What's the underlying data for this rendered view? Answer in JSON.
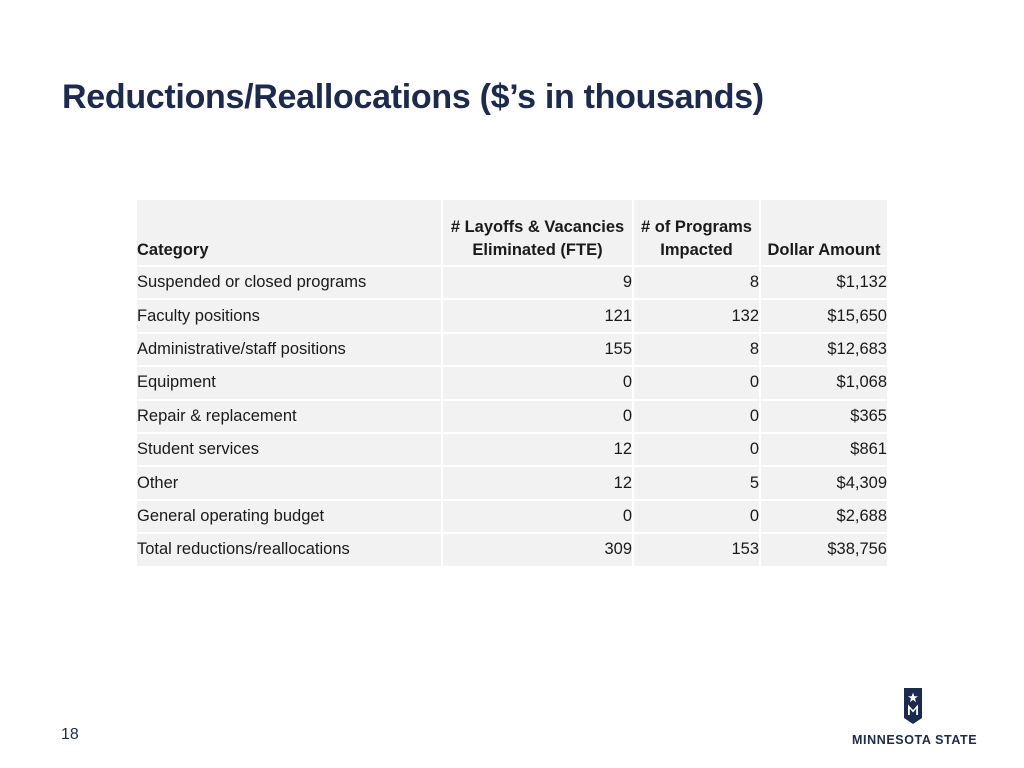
{
  "slide": {
    "title": "Reductions/Reallocations ($’s in thousands)",
    "page_number": "18"
  },
  "table": {
    "headers": {
      "category": "Category",
      "layoffs_line1": "# Layoffs & Vacancies",
      "layoffs_line2": "Eliminated (FTE)",
      "programs_line1": "# of Programs",
      "programs_line2": "Impacted",
      "dollar": "Dollar Amount"
    },
    "rows": [
      {
        "category": "Suspended or closed programs",
        "layoffs": "9",
        "programs": "8",
        "dollar": "$1,132"
      },
      {
        "category": "Faculty positions",
        "layoffs": "121",
        "programs": "132",
        "dollar": "$15,650"
      },
      {
        "category": "Administrative/staff positions",
        "layoffs": "155",
        "programs": "8",
        "dollar": "$12,683"
      },
      {
        "category": "Equipment",
        "layoffs": "0",
        "programs": "0",
        "dollar": "$1,068"
      },
      {
        "category": "Repair & replacement",
        "layoffs": "0",
        "programs": "0",
        "dollar": "$365"
      },
      {
        "category": "Student services",
        "layoffs": "12",
        "programs": "0",
        "dollar": "$861"
      },
      {
        "category": "Other",
        "layoffs": "12",
        "programs": "5",
        "dollar": "$4,309"
      },
      {
        "category": "General operating budget",
        "layoffs": "0",
        "programs": "0",
        "dollar": "$2,688"
      },
      {
        "category": "Total reductions/reallocations",
        "layoffs": "309",
        "programs": "153",
        "dollar": "$38,756"
      }
    ]
  },
  "logo": {
    "text": "MINNESOTA STATE",
    "icon": "minnesota-state-star-icon",
    "color": "#1c2a4f"
  }
}
